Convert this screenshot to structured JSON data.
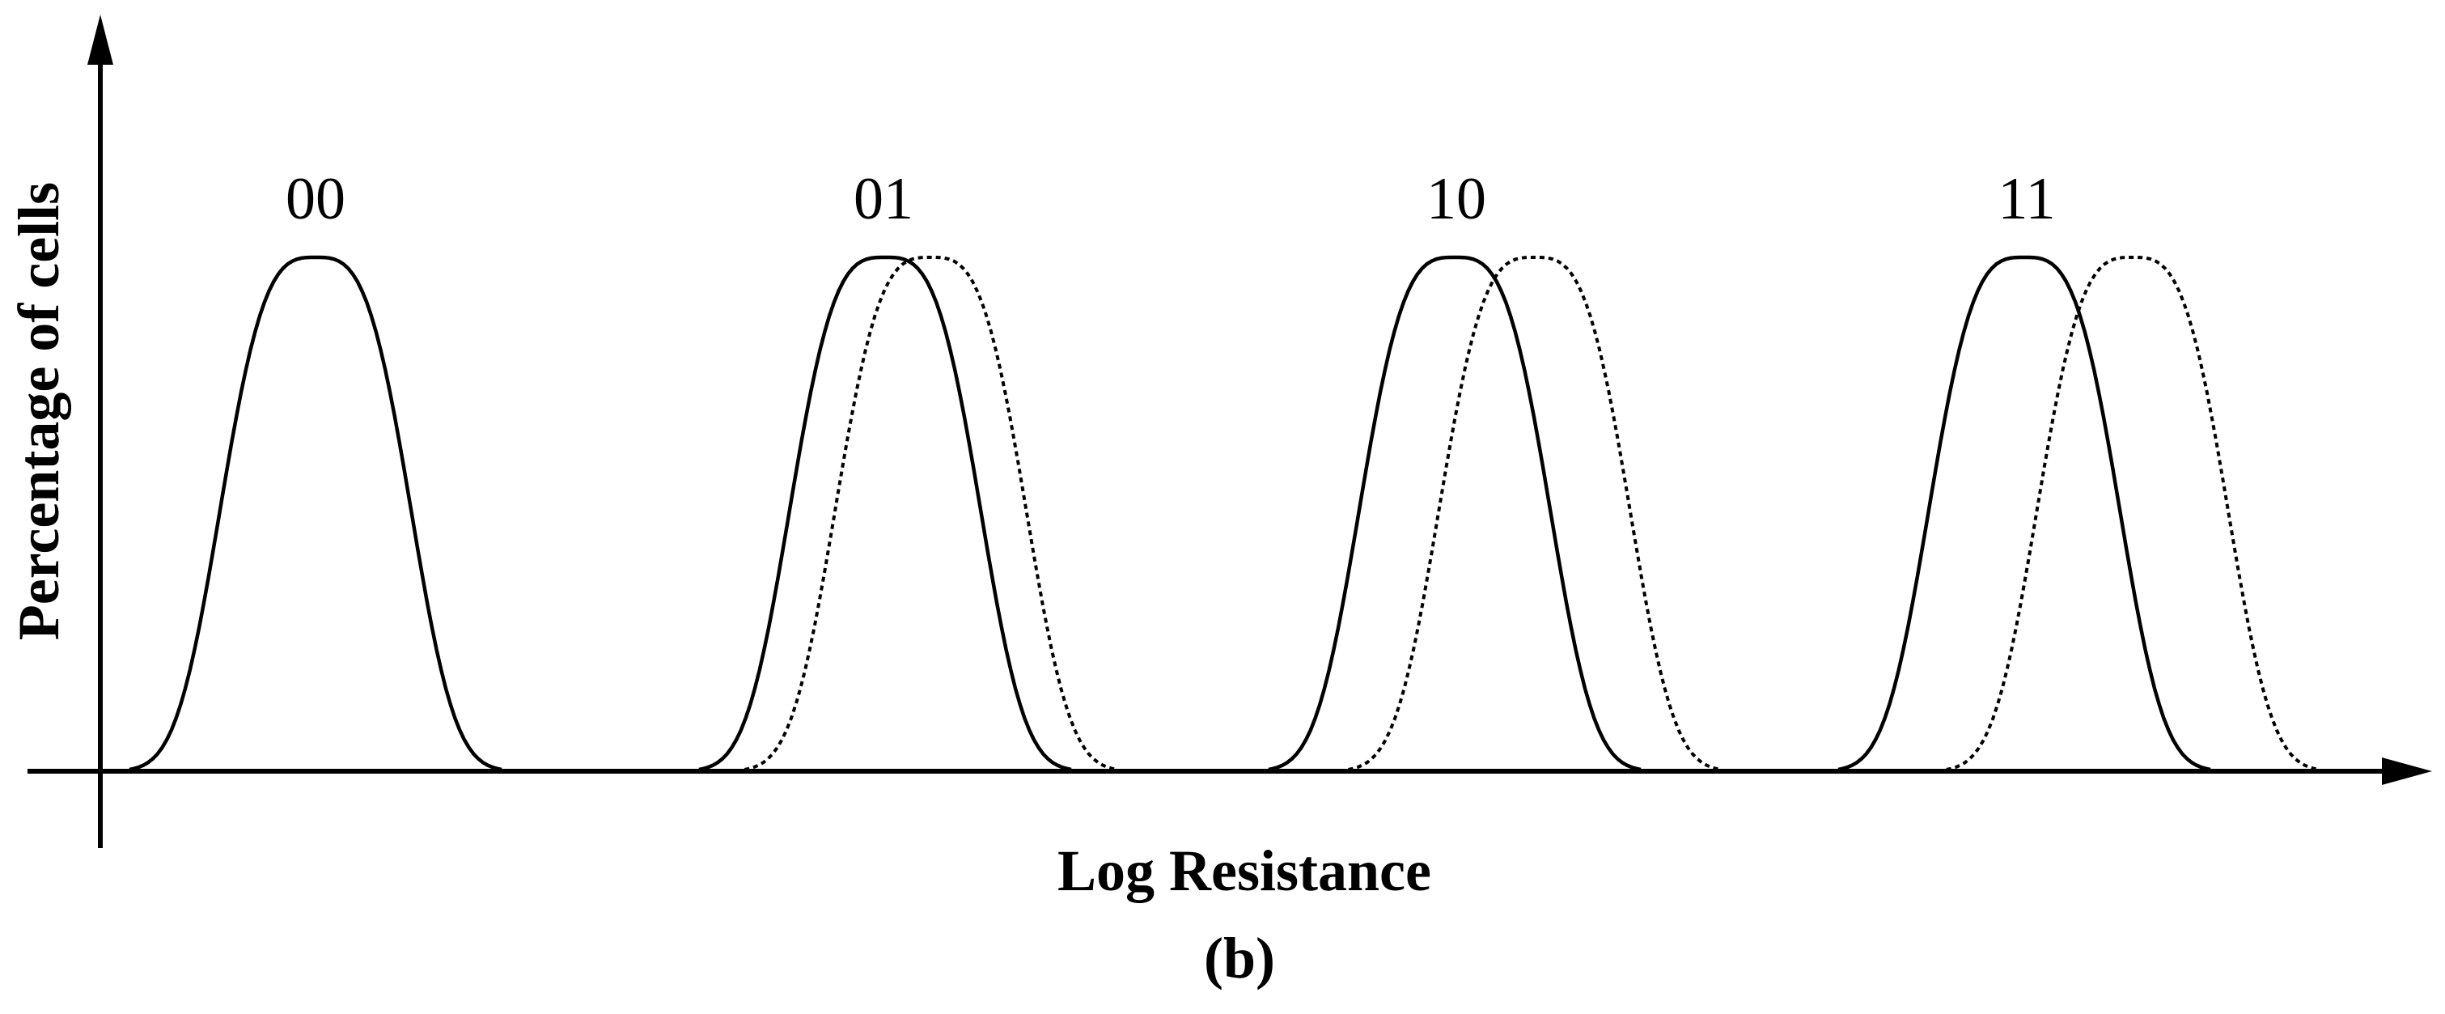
{
  "figure": {
    "panel_label": "(b)",
    "x_axis_title": "Log Resistance",
    "y_axis_title": "Percentage of cells"
  },
  "chart_data": {
    "type": "line",
    "title": "",
    "xlabel": "Log Resistance",
    "ylabel": "Percentage of cells",
    "categories": [
      "00",
      "01",
      "10",
      "11"
    ],
    "curve_styles": {
      "initial": "solid",
      "shifted": "dotted"
    },
    "series": [
      {
        "state": "00",
        "style": "solid",
        "peak_x": 1.0,
        "peak_y": 1.0
      },
      {
        "state": "01",
        "style": "solid",
        "peak_x": 2.0,
        "peak_y": 1.0
      },
      {
        "state": "01",
        "style": "dotted",
        "peak_x": 2.08,
        "peak_y": 1.0
      },
      {
        "state": "10",
        "style": "solid",
        "peak_x": 3.0,
        "peak_y": 1.0
      },
      {
        "state": "10",
        "style": "dotted",
        "peak_x": 3.14,
        "peak_y": 1.0
      },
      {
        "state": "11",
        "style": "solid",
        "peak_x": 4.0,
        "peak_y": 1.0
      },
      {
        "state": "11",
        "style": "dotted",
        "peak_x": 4.19,
        "peak_y": 1.0
      }
    ]
  }
}
